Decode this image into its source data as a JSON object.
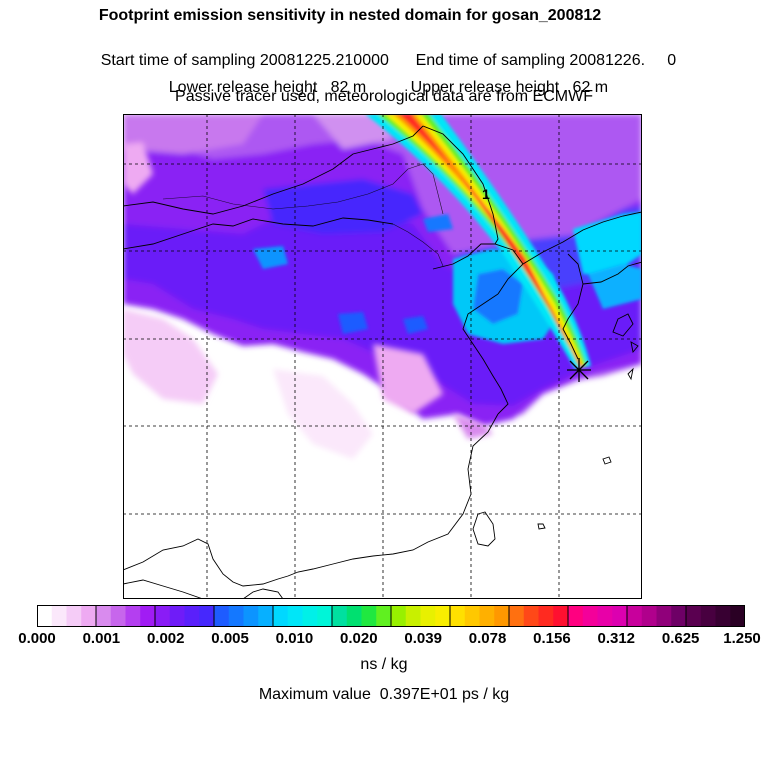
{
  "header": {
    "title": "Footprint emission sensitivity in nested domain for gosan_200812",
    "sampling_start": "Start time of sampling 20081225.210000",
    "sampling_end": "End time of sampling 20081226.",
    "sampling_end_suffix": "0",
    "lower_release": "Lower release height   82 m",
    "upper_release": "Upper release height   62 m",
    "tracer_note": "Passive tracer used, meteorological data are from ECMWF"
  },
  "map": {
    "receptor_marker": "star-receptor",
    "plume_label": "1",
    "colors": {
      "frame": "#000000",
      "grid": "#000000",
      "coast": "#000000"
    }
  },
  "colorbar": {
    "ticks": [
      "0.000",
      "0.001",
      "0.002",
      "0.005",
      "0.010",
      "0.020",
      "0.039",
      "0.078",
      "0.156",
      "0.312",
      "0.625",
      "1.250"
    ],
    "colors": [
      [
        "#ffffff",
        "#fbe8fb",
        "#f5ccf7",
        "#eeaaf2"
      ],
      [
        "#d98bee",
        "#c766ec",
        "#b43ff0",
        "#a11cf4"
      ],
      [
        "#8a1cf6",
        "#6f1cf8",
        "#5a20fb",
        "#4628fd"
      ],
      [
        "#1e5cff",
        "#1478ff",
        "#0c94ff",
        "#07b0ff"
      ],
      [
        "#00d8ff",
        "#00e6f8",
        "#00f0e8",
        "#00f5d8"
      ],
      [
        "#00e0a0",
        "#00e070",
        "#20e840",
        "#60f020"
      ],
      [
        "#98f000",
        "#c8f000",
        "#e8f000",
        "#f8ee00"
      ],
      [
        "#ffe000",
        "#ffc800",
        "#ffb000",
        "#ff9800"
      ],
      [
        "#ff7010",
        "#ff4818",
        "#ff2a20",
        "#ff1030"
      ],
      [
        "#ff0080",
        "#f4009a",
        "#e800a8",
        "#dc00b0"
      ],
      [
        "#c8009c",
        "#b0008c",
        "#90007a",
        "#6e0066"
      ],
      [
        "#5a0050",
        "#480040",
        "#380032",
        "#2a0024"
      ]
    ],
    "unit": "ns / kg",
    "max_value": "Maximum value  0.397E+01 ps / kg"
  }
}
